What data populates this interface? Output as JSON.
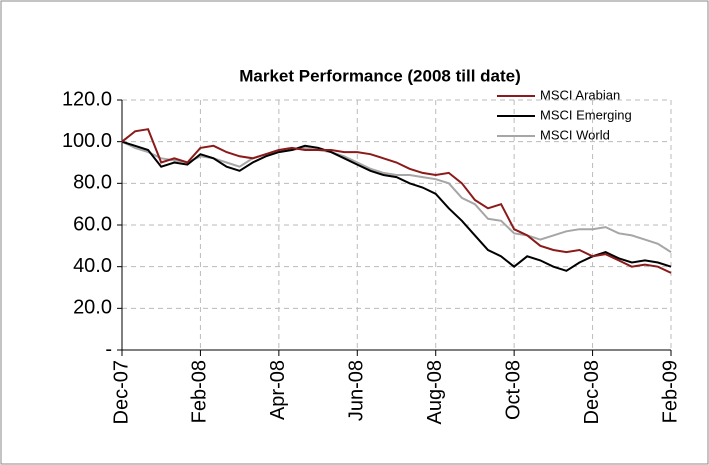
{
  "chart_data": {
    "type": "line",
    "title": "Market Performance (2008 till date)",
    "categories": [
      "Dec-07",
      null,
      null,
      null,
      null,
      null,
      "Feb-08",
      null,
      null,
      null,
      null,
      null,
      "Apr-08",
      null,
      null,
      null,
      null,
      null,
      "Jun-08",
      null,
      null,
      null,
      null,
      null,
      "Aug-08",
      null,
      null,
      null,
      null,
      null,
      "Oct-08",
      null,
      null,
      null,
      null,
      null,
      "Dec-08",
      null,
      null,
      null,
      null,
      null,
      "Feb-09"
    ],
    "series": [
      {
        "name": "MSCI Arabian",
        "color": "#8b1a1a",
        "values": [
          100,
          105,
          106,
          90,
          92,
          90,
          97,
          98,
          95,
          93,
          92,
          94,
          96,
          97,
          96,
          96,
          96,
          95,
          95,
          94,
          92,
          90,
          87,
          85,
          84,
          85,
          80,
          72,
          68,
          70,
          58,
          55,
          50,
          48,
          47,
          48,
          45,
          46,
          43,
          40,
          41,
          40,
          37
        ]
      },
      {
        "name": "MSCI Emerging",
        "color": "#000000",
        "values": [
          100,
          98,
          96,
          88,
          90,
          89,
          94,
          92,
          88,
          86,
          90,
          93,
          95,
          96,
          98,
          97,
          95,
          92,
          89,
          86,
          84,
          83,
          80,
          78,
          75,
          68,
          62,
          55,
          48,
          45,
          40,
          45,
          43,
          40,
          38,
          42,
          45,
          47,
          44,
          42,
          43,
          42,
          40
        ]
      },
      {
        "name": "MSCI World",
        "color": "#a6a6a6",
        "values": [
          100,
          97,
          95,
          92,
          91,
          90,
          93,
          92,
          90,
          88,
          92,
          94,
          96,
          96,
          97,
          96,
          95,
          93,
          90,
          87,
          85,
          84,
          84,
          83,
          82,
          80,
          73,
          70,
          63,
          62,
          56,
          55,
          53,
          55,
          57,
          58,
          58,
          59,
          56,
          55,
          53,
          51,
          47
        ]
      }
    ],
    "ylim": [
      0,
      120
    ],
    "yticks": [
      {
        "value": 0,
        "label": "-"
      },
      {
        "value": 20,
        "label": "20.0"
      },
      {
        "value": 40,
        "label": "40.0"
      },
      {
        "value": 60,
        "label": "60.0"
      },
      {
        "value": 80,
        "label": "80.0"
      },
      {
        "value": 100,
        "label": "100.0"
      },
      {
        "value": 120,
        "label": "120.0"
      }
    ],
    "grid": true,
    "legend": "top-right"
  }
}
